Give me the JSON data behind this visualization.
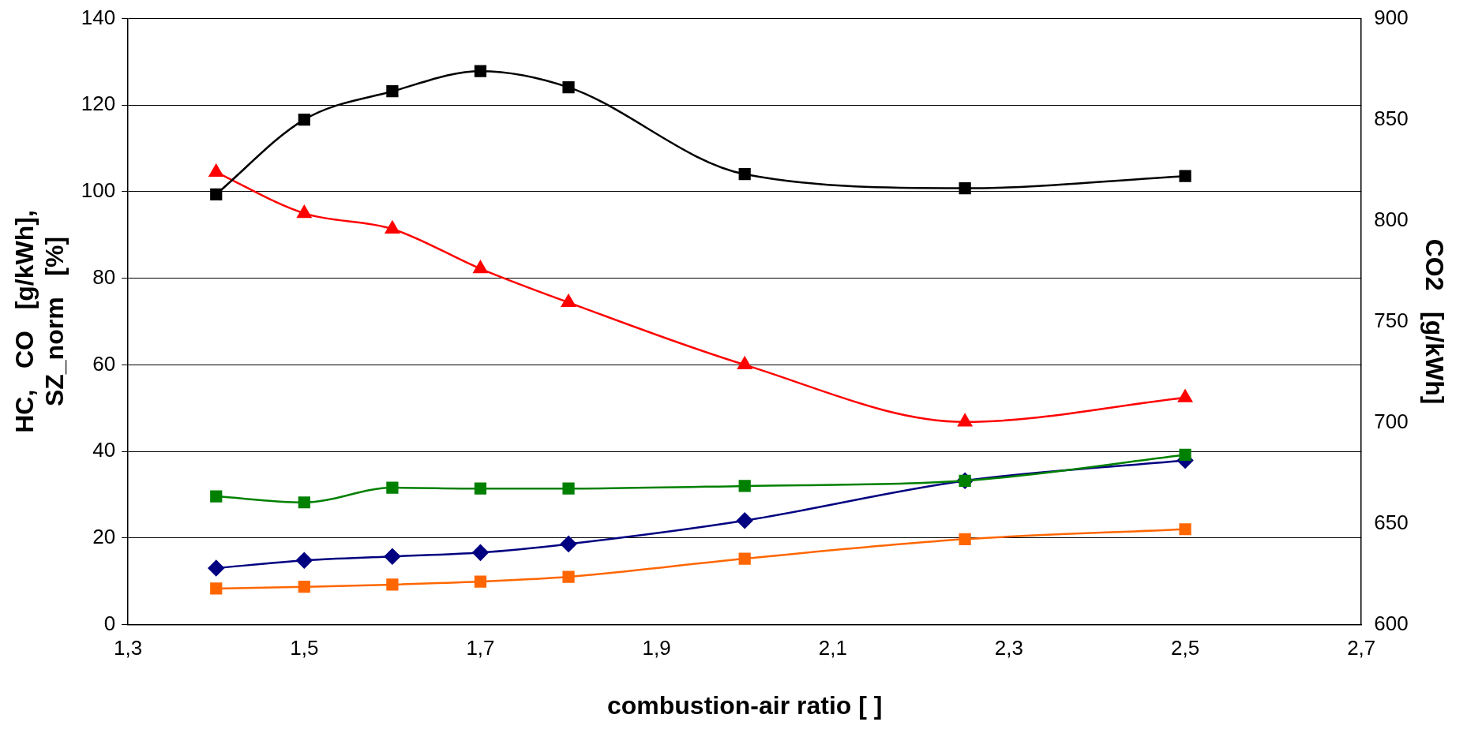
{
  "chart_data": {
    "type": "line",
    "xlabel": "combustion-air ratio [ ]",
    "ylabel": "HC,   CO   [g/kWh],\nSZ_norm   [%]",
    "y2label": "CO2   [g/kWh]",
    "x": [
      1.4,
      1.5,
      1.6,
      1.7,
      1.8,
      2.0,
      2.25,
      2.5
    ],
    "series": [
      {
        "color": "#000000",
        "marker": "square",
        "axis": "y2",
        "values": [
          813,
          850,
          864,
          874,
          866,
          823,
          816,
          822
        ]
      },
      {
        "color": "#ff0000",
        "marker": "triangle",
        "values": [
          104.5,
          95,
          91.4,
          82.2,
          74.4,
          60,
          46.8,
          52.4
        ]
      },
      {
        "color": "#008000",
        "marker": "square",
        "values": [
          29.6,
          28.2,
          31.6,
          31.4,
          31.4,
          32,
          33.2,
          39.2
        ]
      },
      {
        "color": "#000080",
        "marker": "diamond",
        "values": [
          13,
          14.8,
          15.7,
          16.6,
          18.6,
          24,
          33.2,
          37.9
        ]
      },
      {
        "color": "#ff6600",
        "marker": "square",
        "values": [
          8.3,
          8.7,
          9.2,
          9.9,
          11,
          15.2,
          19.7,
          22
        ]
      }
    ],
    "xlim": [
      1.3,
      2.7
    ],
    "xticks": [
      {
        "value": 1.3,
        "label": "1,3"
      },
      {
        "value": 1.5,
        "label": "1,5"
      },
      {
        "value": 1.7,
        "label": "1,7"
      },
      {
        "value": 1.9,
        "label": "1,9"
      },
      {
        "value": 2.1,
        "label": "2,1"
      },
      {
        "value": 2.3,
        "label": "2,3"
      },
      {
        "value": 2.5,
        "label": "2,5"
      },
      {
        "value": 2.7,
        "label": "2,7"
      }
    ],
    "ylim": [
      0,
      140
    ],
    "yticks": [
      0,
      20,
      40,
      60,
      80,
      100,
      120,
      140
    ],
    "y2lim": [
      600,
      900
    ],
    "y2ticks": [
      600,
      650,
      700,
      750,
      800,
      850,
      900
    ],
    "grid": "y",
    "line_style": "solid"
  }
}
